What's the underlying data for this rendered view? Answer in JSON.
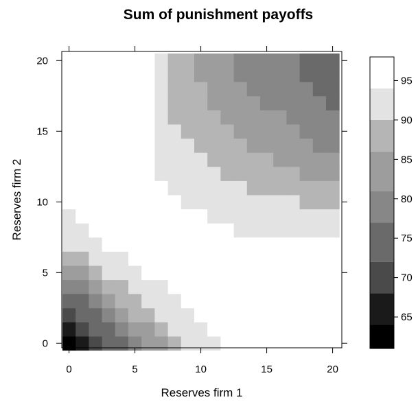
{
  "chart_data": {
    "type": "heatmap",
    "title": "Sum of punishment payoffs",
    "xlabel": "Reserves firm 1",
    "ylabel": "Reserves firm 2",
    "xlim": [
      0,
      20
    ],
    "ylim": [
      0,
      20
    ],
    "x_ticks": [
      0,
      5,
      10,
      15,
      20
    ],
    "y_ticks": [
      0,
      5,
      10,
      15,
      20
    ],
    "colorbar": {
      "ticks": [
        65,
        70,
        75,
        80,
        85,
        90,
        95
      ],
      "levels": [
        {
          "from": 61,
          "to": 64,
          "color": "#000000"
        },
        {
          "from": 64,
          "to": 68,
          "color": "#1a1a1a"
        },
        {
          "from": 68,
          "to": 72,
          "color": "#4a4a4a"
        },
        {
          "from": 72,
          "to": 77,
          "color": "#6a6a6a"
        },
        {
          "from": 77,
          "to": 81,
          "color": "#878787"
        },
        {
          "from": 81,
          "to": 86,
          "color": "#9d9d9d"
        },
        {
          "from": 86,
          "to": 90,
          "color": "#b5b5b5"
        },
        {
          "from": 90,
          "to": 94,
          "color": "#e3e3e3"
        },
        {
          "from": 94,
          "to": 98,
          "color": "#ffffff"
        }
      ]
    },
    "grid_level_rows_from_y0": [
      "012334556777888888888",
      "123345567778888888888",
      "233456677788888888888",
      "334566777888888888888",
      "445667778888888888888",
      "556777888888888888888",
      "667778888888888888888",
      "777888888888888888888",
      "778888888888877777777",
      "788888888887777777777",
      "888888888777777777666",
      "888888887777776666666",
      "888888877777666666555",
      "888888877776666655555",
      "888888877766665555544",
      "888888877666655555444",
      "888888876666555554444",
      "888888876665555444443",
      "888888876665554444433",
      "888888876655544444333",
      "888888876655544444333"
    ]
  }
}
